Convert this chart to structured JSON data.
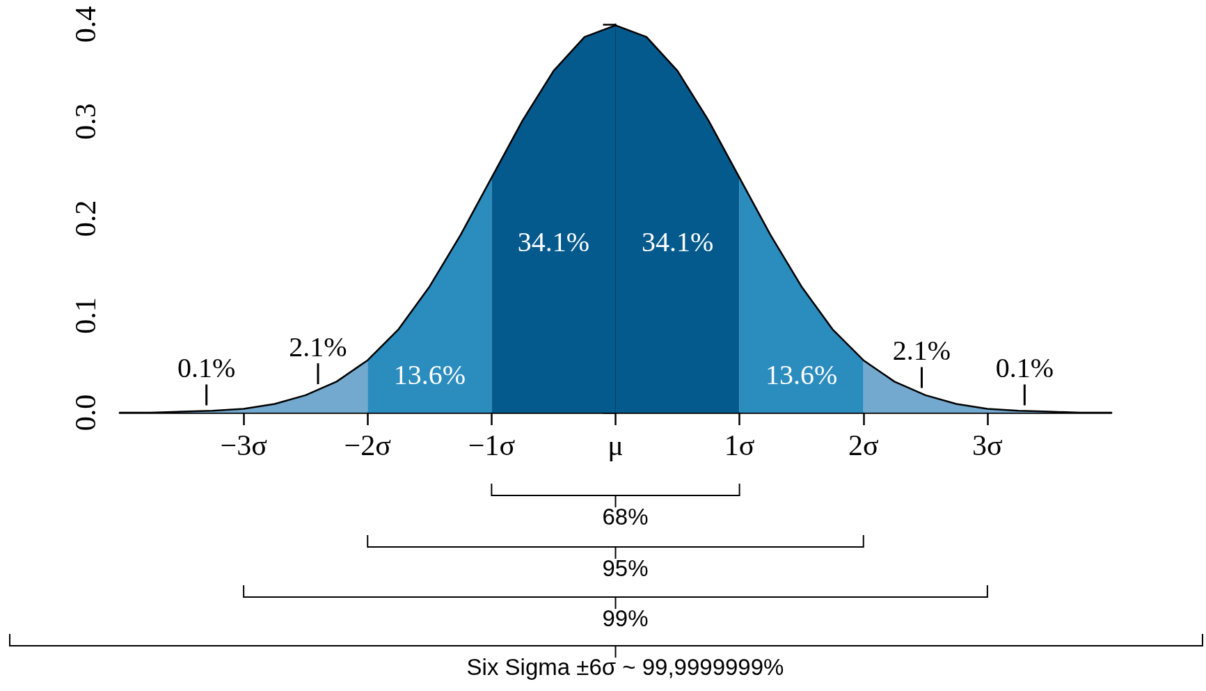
{
  "chart_data": {
    "type": "area",
    "xlim": [
      -4,
      4
    ],
    "xticks": [
      {
        "value": -3,
        "label": "−3σ"
      },
      {
        "value": -2,
        "label": "−2σ"
      },
      {
        "value": -1,
        "label": "−1σ"
      },
      {
        "value": 0,
        "label": "μ"
      },
      {
        "value": 1,
        "label": "1σ"
      },
      {
        "value": 2,
        "label": "2σ"
      },
      {
        "value": 3,
        "label": "3σ"
      }
    ],
    "ylim": [
      0,
      0.4
    ],
    "yticks": [
      {
        "value": 0,
        "label": "0.0"
      },
      0.1,
      0.2,
      0.3,
      0.4
    ],
    "series": [
      {
        "color": "#74a9cf",
        "x": [
          -4,
          -3.75,
          -3.5,
          -3.25,
          -3
        ],
        "values": [
          0.0,
          0.0,
          0.001,
          0.002,
          0.004
        ]
      },
      {
        "color": "#74a9cf",
        "x": [
          -3,
          -2.75,
          -2.5,
          -2.25,
          -2
        ],
        "values": [
          0.004,
          0.009,
          0.018,
          0.032,
          0.054
        ]
      },
      {
        "color": "#2b8cbe",
        "x": [
          -2,
          -1.75,
          -1.5,
          -1.25,
          -1
        ],
        "values": [
          0.054,
          0.086,
          0.13,
          0.183,
          0.242
        ]
      },
      {
        "color": "#045a8d",
        "x": [
          -1,
          -0.75,
          -0.5,
          -0.25,
          0
        ],
        "values": [
          0.242,
          0.301,
          0.352,
          0.387,
          0.399
        ]
      },
      {
        "color": "#045a8d",
        "x": [
          0,
          0.25,
          0.5,
          0.75,
          1
        ],
        "values": [
          0.399,
          0.387,
          0.352,
          0.301,
          0.242
        ]
      },
      {
        "color": "#2b8cbe",
        "x": [
          1,
          1.25,
          1.5,
          1.75,
          2
        ],
        "values": [
          0.242,
          0.183,
          0.13,
          0.086,
          0.054
        ]
      },
      {
        "color": "#74a9cf",
        "x": [
          2,
          2.25,
          2.5,
          2.75,
          3
        ],
        "values": [
          0.054,
          0.032,
          0.018,
          0.009,
          0.004
        ]
      },
      {
        "color": "#74a9cf",
        "x": [
          3,
          3.25,
          3.5,
          3.75,
          4
        ],
        "values": [
          0.004,
          0.002,
          0.001,
          0.0,
          0.0
        ]
      },
      {
        "type": "line",
        "color": "#000000",
        "x": [
          -4,
          -3.75,
          -3.5,
          -3.25,
          -3,
          -2.75,
          -2.5,
          -2.25,
          -2,
          -1.75,
          -1.5,
          -1.25,
          -1,
          -0.75,
          -0.5,
          -0.25,
          0,
          0.25,
          0.5,
          0.75,
          1,
          1.25,
          1.5,
          1.75,
          2,
          2.25,
          2.5,
          2.75,
          3,
          3.25,
          3.5,
          3.75,
          4
        ],
        "values": [
          0.0,
          0.0,
          0.001,
          0.002,
          0.004,
          0.009,
          0.018,
          0.032,
          0.054,
          0.086,
          0.13,
          0.183,
          0.242,
          0.301,
          0.352,
          0.387,
          0.399,
          0.387,
          0.352,
          0.301,
          0.242,
          0.183,
          0.13,
          0.086,
          0.054,
          0.032,
          0.018,
          0.009,
          0.004,
          0.002,
          0.001,
          0.0,
          0.0
        ]
      }
    ],
    "annotations": [
      "0.1%",
      "2.1%",
      "13.6%",
      "34.1%",
      "34.1%",
      "13.6%",
      "2.1%",
      "0.1%",
      "68%",
      "95%",
      "99%",
      "Six Sigma ±6σ ~ 99,9999999%"
    ]
  }
}
